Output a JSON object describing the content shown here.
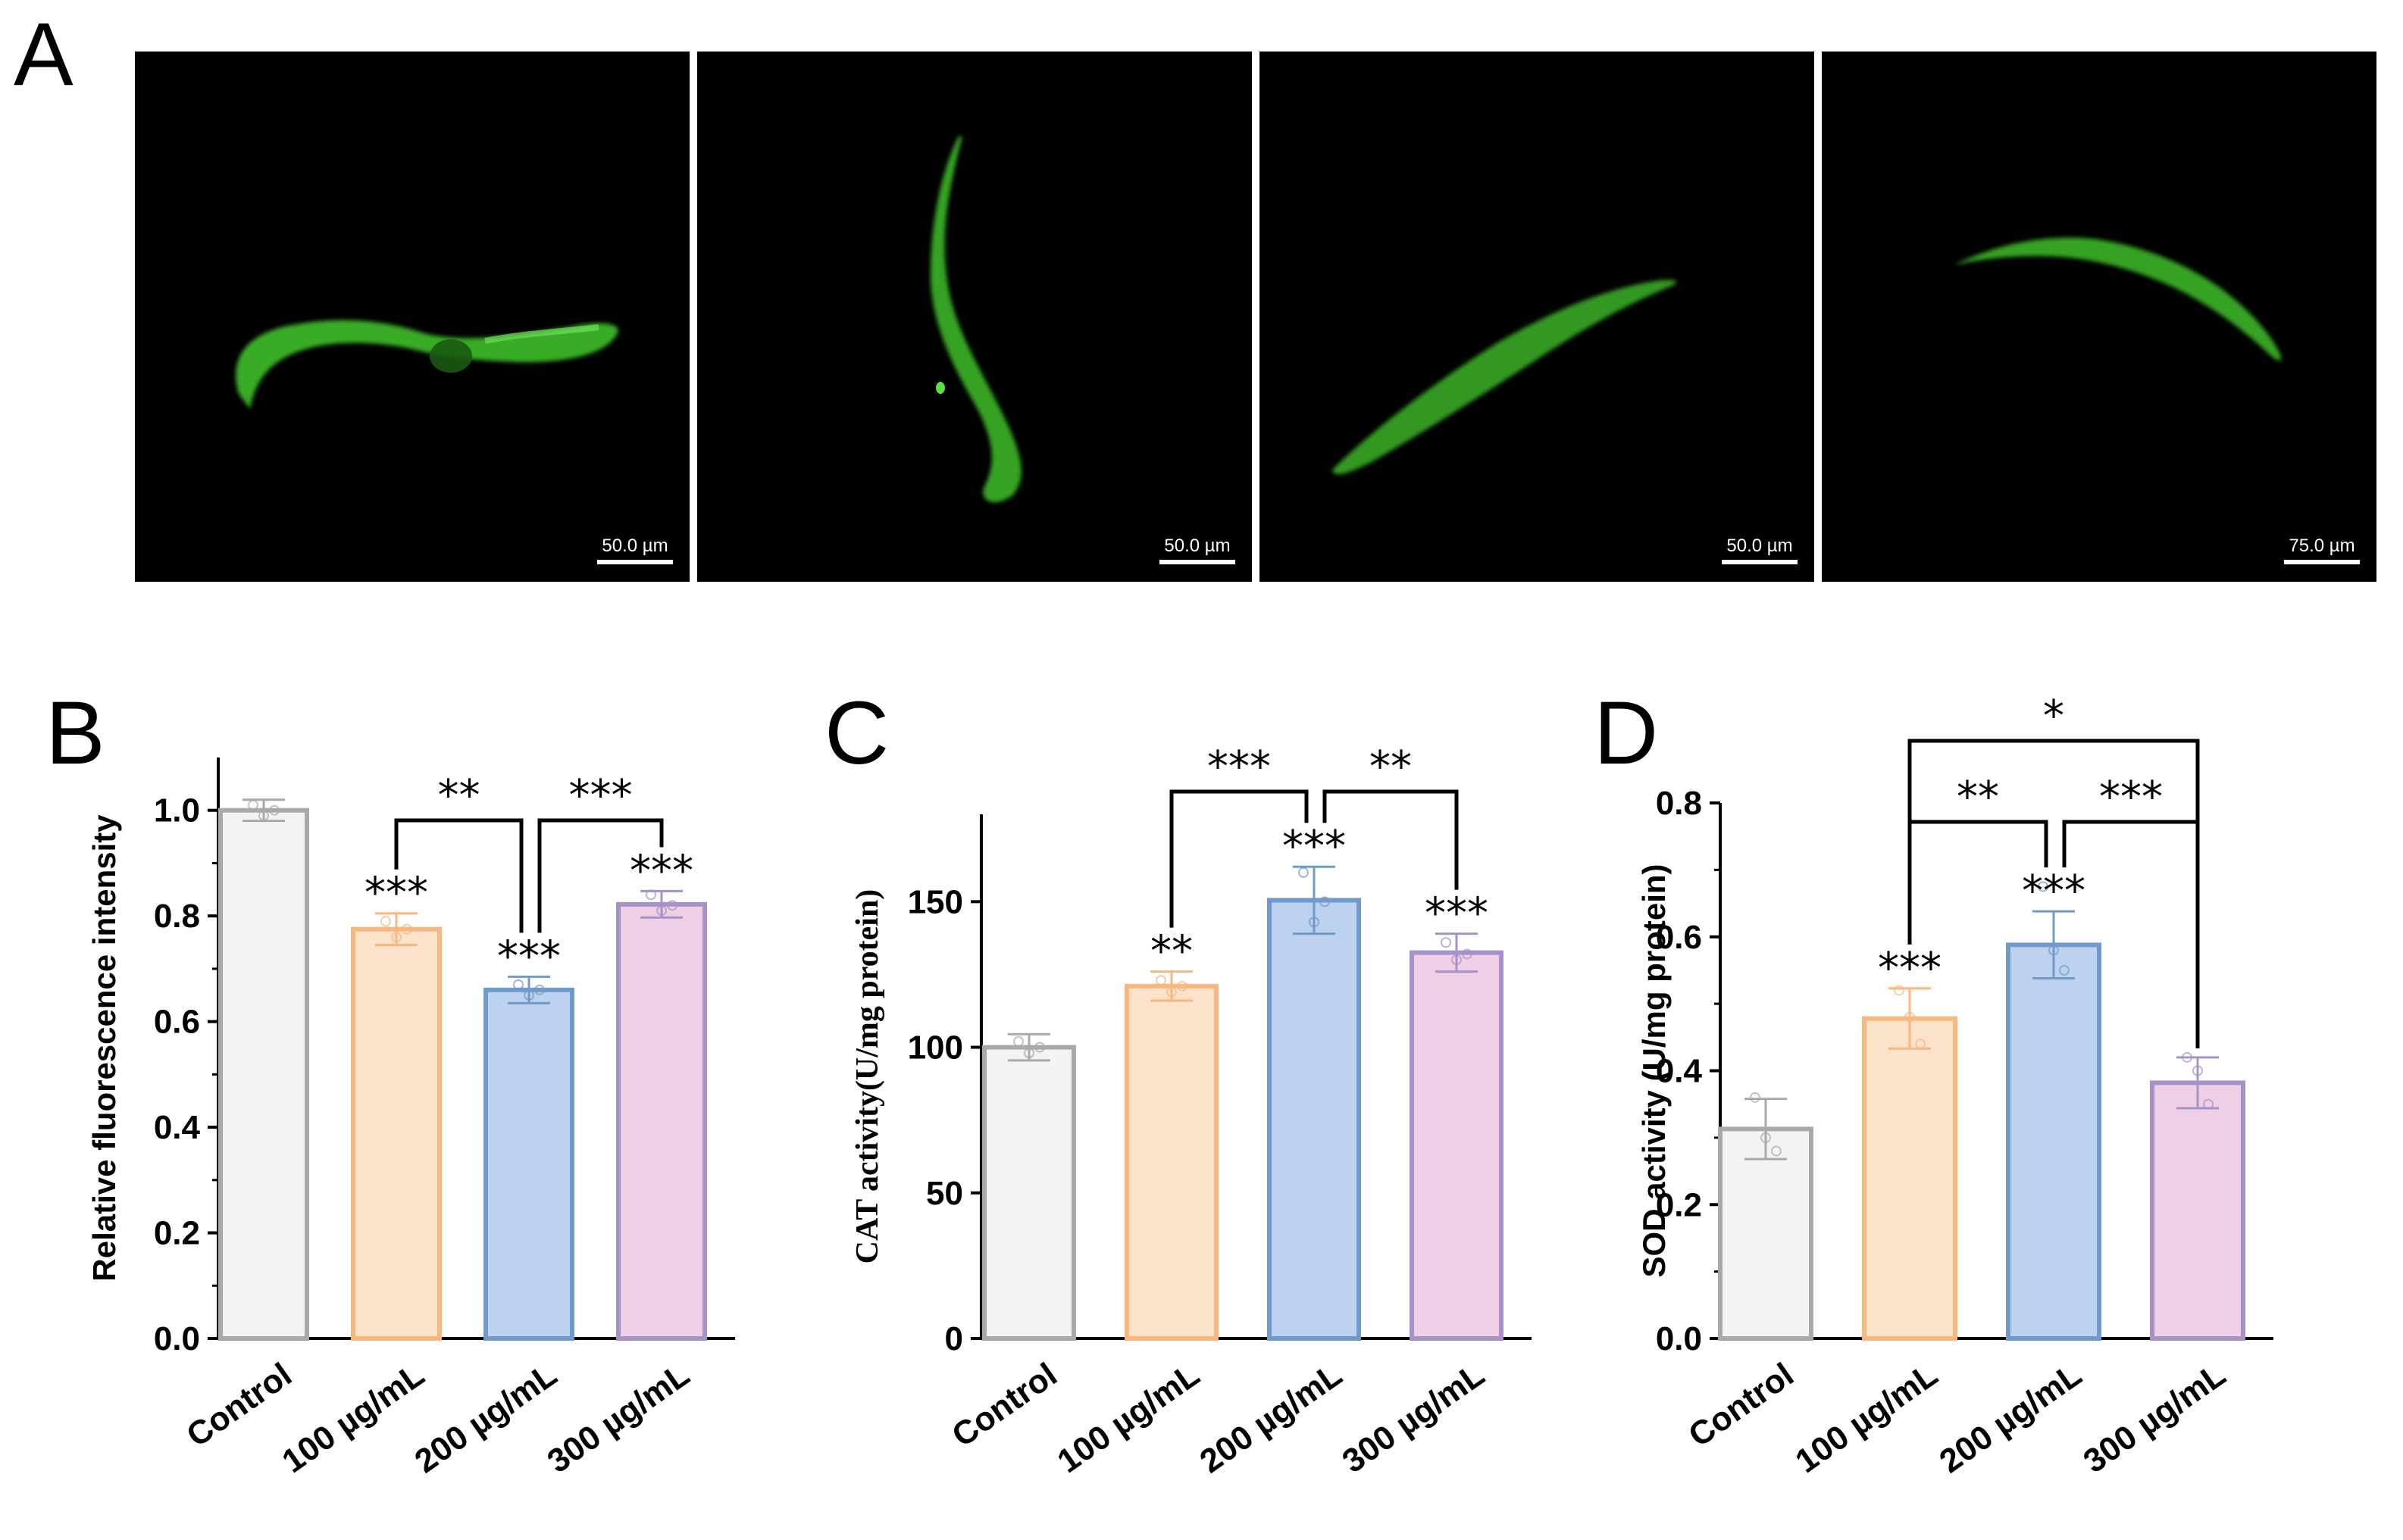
{
  "panels": {
    "a_label": "A",
    "micrographs": [
      {
        "scale_label": "50.0 µm"
      },
      {
        "scale_label": "50.0 µm"
      },
      {
        "scale_label": "50.0 µm"
      },
      {
        "scale_label": "75.0 µm"
      }
    ]
  },
  "colors": {
    "fluorescence": "#3fbf2a",
    "background": "#000000",
    "bar_fills": [
      "#f3f3f5",
      "#fde2cc",
      "#bcd2ee",
      "#f0cfe6"
    ],
    "bar_strokes": [
      "#a9a9a9",
      "#f7b77f",
      "#7199c9",
      "#a493c7"
    ]
  },
  "chart_data": [
    {
      "panel": "B",
      "type": "bar",
      "categories": [
        "Control",
        "100 µg/mL",
        "200 µg/mL",
        "300 µg/mL"
      ],
      "values": [
        1.0,
        0.775,
        0.66,
        0.822
      ],
      "errors": [
        0.02,
        0.03,
        0.025,
        0.025
      ],
      "points": [
        [
          1.01,
          0.99,
          1.0
        ],
        [
          0.79,
          0.76,
          0.775
        ],
        [
          0.67,
          0.65,
          0.66
        ],
        [
          0.84,
          0.81,
          0.82
        ]
      ],
      "ylabel": "Relative fluorescence intensity",
      "ylim": [
        0,
        1.1
      ],
      "yticks": [
        "0.0",
        "0.2",
        "0.4",
        "0.6",
        "0.8",
        "1.0"
      ],
      "bar_annotations": [
        "",
        "***",
        "***",
        "***"
      ],
      "brackets": [
        {
          "from": 1,
          "to": 2,
          "label": "**"
        },
        {
          "from": 2,
          "to": 3,
          "label": "***"
        }
      ]
    },
    {
      "panel": "C",
      "type": "bar",
      "categories": [
        "Control",
        "100 µg/mL",
        "200 µg/mL",
        "300 µg/mL"
      ],
      "values": [
        100,
        121,
        150.5,
        132.5
      ],
      "errors": [
        4.5,
        5,
        11.5,
        6.5
      ],
      "points": [
        [
          102,
          98,
          100
        ],
        [
          123,
          119,
          121
        ],
        [
          160,
          143,
          150
        ],
        [
          136,
          130,
          132
        ]
      ],
      "ylabel": "CAT activity(U/mg protein)",
      "ylim": [
        0,
        180
      ],
      "yticks": [
        "0",
        "50",
        "100",
        "150"
      ],
      "bar_annotations": [
        "",
        "**",
        "***",
        "***"
      ],
      "brackets": [
        {
          "from": 1,
          "to": 2,
          "label": "***"
        },
        {
          "from": 2,
          "to": 3,
          "label": "**"
        }
      ]
    },
    {
      "panel": "D",
      "type": "bar",
      "categories": [
        "Control",
        "100 µg/mL",
        "200 µg/mL",
        "300 µg/mL"
      ],
      "values": [
        0.313,
        0.478,
        0.588,
        0.382
      ],
      "errors": [
        0.045,
        0.045,
        0.05,
        0.038
      ],
      "points": [
        [
          0.36,
          0.3,
          0.28
        ],
        [
          0.52,
          0.48,
          0.44
        ],
        [
          0.675,
          0.58,
          0.55
        ],
        [
          0.42,
          0.4,
          0.35
        ]
      ],
      "ylabel": "SOD activity (U/mg protein)",
      "ylim": [
        0,
        0.8
      ],
      "yticks": [
        "0.0",
        "0.2",
        "0.4",
        "0.6",
        "0.8"
      ],
      "bar_annotations": [
        "",
        "***",
        "***",
        ""
      ],
      "brackets": [
        {
          "from": 1,
          "to": 2,
          "label": "**"
        },
        {
          "from": 2,
          "to": 3,
          "label": "***"
        },
        {
          "from": 1,
          "to": 3,
          "label": "*"
        }
      ]
    }
  ]
}
